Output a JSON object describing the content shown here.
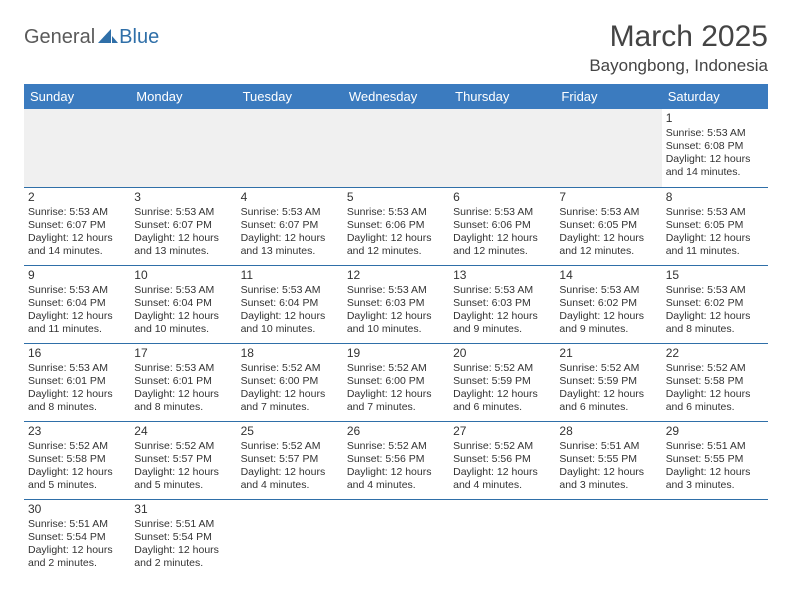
{
  "logo": {
    "part1": "General",
    "part2": "Blue"
  },
  "title": "March 2025",
  "location": "Bayongbong, Indonesia",
  "colors": {
    "header_bg": "#3b7bbf",
    "header_text": "#ffffff",
    "border": "#2f6fa8",
    "empty_bg": "#f0f0f0",
    "text": "#333333",
    "logo_gray": "#5a5a5a",
    "logo_blue": "#2f6fa8"
  },
  "weekdays": [
    "Sunday",
    "Monday",
    "Tuesday",
    "Wednesday",
    "Thursday",
    "Friday",
    "Saturday"
  ],
  "weeks": [
    [
      null,
      null,
      null,
      null,
      null,
      null,
      {
        "n": "1",
        "sr": "Sunrise: 5:53 AM",
        "ss": "Sunset: 6:08 PM",
        "d1": "Daylight: 12 hours",
        "d2": "and 14 minutes."
      }
    ],
    [
      {
        "n": "2",
        "sr": "Sunrise: 5:53 AM",
        "ss": "Sunset: 6:07 PM",
        "d1": "Daylight: 12 hours",
        "d2": "and 14 minutes."
      },
      {
        "n": "3",
        "sr": "Sunrise: 5:53 AM",
        "ss": "Sunset: 6:07 PM",
        "d1": "Daylight: 12 hours",
        "d2": "and 13 minutes."
      },
      {
        "n": "4",
        "sr": "Sunrise: 5:53 AM",
        "ss": "Sunset: 6:07 PM",
        "d1": "Daylight: 12 hours",
        "d2": "and 13 minutes."
      },
      {
        "n": "5",
        "sr": "Sunrise: 5:53 AM",
        "ss": "Sunset: 6:06 PM",
        "d1": "Daylight: 12 hours",
        "d2": "and 12 minutes."
      },
      {
        "n": "6",
        "sr": "Sunrise: 5:53 AM",
        "ss": "Sunset: 6:06 PM",
        "d1": "Daylight: 12 hours",
        "d2": "and 12 minutes."
      },
      {
        "n": "7",
        "sr": "Sunrise: 5:53 AM",
        "ss": "Sunset: 6:05 PM",
        "d1": "Daylight: 12 hours",
        "d2": "and 12 minutes."
      },
      {
        "n": "8",
        "sr": "Sunrise: 5:53 AM",
        "ss": "Sunset: 6:05 PM",
        "d1": "Daylight: 12 hours",
        "d2": "and 11 minutes."
      }
    ],
    [
      {
        "n": "9",
        "sr": "Sunrise: 5:53 AM",
        "ss": "Sunset: 6:04 PM",
        "d1": "Daylight: 12 hours",
        "d2": "and 11 minutes."
      },
      {
        "n": "10",
        "sr": "Sunrise: 5:53 AM",
        "ss": "Sunset: 6:04 PM",
        "d1": "Daylight: 12 hours",
        "d2": "and 10 minutes."
      },
      {
        "n": "11",
        "sr": "Sunrise: 5:53 AM",
        "ss": "Sunset: 6:04 PM",
        "d1": "Daylight: 12 hours",
        "d2": "and 10 minutes."
      },
      {
        "n": "12",
        "sr": "Sunrise: 5:53 AM",
        "ss": "Sunset: 6:03 PM",
        "d1": "Daylight: 12 hours",
        "d2": "and 10 minutes."
      },
      {
        "n": "13",
        "sr": "Sunrise: 5:53 AM",
        "ss": "Sunset: 6:03 PM",
        "d1": "Daylight: 12 hours",
        "d2": "and 9 minutes."
      },
      {
        "n": "14",
        "sr": "Sunrise: 5:53 AM",
        "ss": "Sunset: 6:02 PM",
        "d1": "Daylight: 12 hours",
        "d2": "and 9 minutes."
      },
      {
        "n": "15",
        "sr": "Sunrise: 5:53 AM",
        "ss": "Sunset: 6:02 PM",
        "d1": "Daylight: 12 hours",
        "d2": "and 8 minutes."
      }
    ],
    [
      {
        "n": "16",
        "sr": "Sunrise: 5:53 AM",
        "ss": "Sunset: 6:01 PM",
        "d1": "Daylight: 12 hours",
        "d2": "and 8 minutes."
      },
      {
        "n": "17",
        "sr": "Sunrise: 5:53 AM",
        "ss": "Sunset: 6:01 PM",
        "d1": "Daylight: 12 hours",
        "d2": "and 8 minutes."
      },
      {
        "n": "18",
        "sr": "Sunrise: 5:52 AM",
        "ss": "Sunset: 6:00 PM",
        "d1": "Daylight: 12 hours",
        "d2": "and 7 minutes."
      },
      {
        "n": "19",
        "sr": "Sunrise: 5:52 AM",
        "ss": "Sunset: 6:00 PM",
        "d1": "Daylight: 12 hours",
        "d2": "and 7 minutes."
      },
      {
        "n": "20",
        "sr": "Sunrise: 5:52 AM",
        "ss": "Sunset: 5:59 PM",
        "d1": "Daylight: 12 hours",
        "d2": "and 6 minutes."
      },
      {
        "n": "21",
        "sr": "Sunrise: 5:52 AM",
        "ss": "Sunset: 5:59 PM",
        "d1": "Daylight: 12 hours",
        "d2": "and 6 minutes."
      },
      {
        "n": "22",
        "sr": "Sunrise: 5:52 AM",
        "ss": "Sunset: 5:58 PM",
        "d1": "Daylight: 12 hours",
        "d2": "and 6 minutes."
      }
    ],
    [
      {
        "n": "23",
        "sr": "Sunrise: 5:52 AM",
        "ss": "Sunset: 5:58 PM",
        "d1": "Daylight: 12 hours",
        "d2": "and 5 minutes."
      },
      {
        "n": "24",
        "sr": "Sunrise: 5:52 AM",
        "ss": "Sunset: 5:57 PM",
        "d1": "Daylight: 12 hours",
        "d2": "and 5 minutes."
      },
      {
        "n": "25",
        "sr": "Sunrise: 5:52 AM",
        "ss": "Sunset: 5:57 PM",
        "d1": "Daylight: 12 hours",
        "d2": "and 4 minutes."
      },
      {
        "n": "26",
        "sr": "Sunrise: 5:52 AM",
        "ss": "Sunset: 5:56 PM",
        "d1": "Daylight: 12 hours",
        "d2": "and 4 minutes."
      },
      {
        "n": "27",
        "sr": "Sunrise: 5:52 AM",
        "ss": "Sunset: 5:56 PM",
        "d1": "Daylight: 12 hours",
        "d2": "and 4 minutes."
      },
      {
        "n": "28",
        "sr": "Sunrise: 5:51 AM",
        "ss": "Sunset: 5:55 PM",
        "d1": "Daylight: 12 hours",
        "d2": "and 3 minutes."
      },
      {
        "n": "29",
        "sr": "Sunrise: 5:51 AM",
        "ss": "Sunset: 5:55 PM",
        "d1": "Daylight: 12 hours",
        "d2": "and 3 minutes."
      }
    ],
    [
      {
        "n": "30",
        "sr": "Sunrise: 5:51 AM",
        "ss": "Sunset: 5:54 PM",
        "d1": "Daylight: 12 hours",
        "d2": "and 2 minutes."
      },
      {
        "n": "31",
        "sr": "Sunrise: 5:51 AM",
        "ss": "Sunset: 5:54 PM",
        "d1": "Daylight: 12 hours",
        "d2": "and 2 minutes."
      },
      null,
      null,
      null,
      null,
      null
    ]
  ]
}
